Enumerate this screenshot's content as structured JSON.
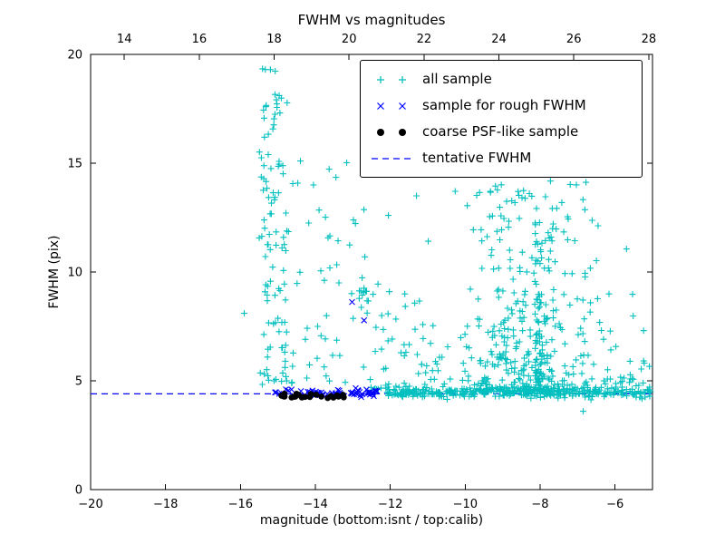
{
  "chart_data": {
    "type": "scatter",
    "title": "FWHM vs magnitudes",
    "xlabel": "magnitude (bottom:isnt / top:calib)",
    "ylabel": "FWHM (pix)",
    "x_range": [
      -20,
      -5
    ],
    "y_range": [
      0,
      20
    ],
    "x_top_range": [
      13.1,
      28.1
    ],
    "x_ticks": [
      -20,
      -18,
      -16,
      -14,
      -12,
      -10,
      -8,
      -6
    ],
    "x_top_ticks": [
      14,
      16,
      18,
      20,
      22,
      24,
      26,
      28
    ],
    "y_ticks": [
      0,
      5,
      10,
      15,
      20
    ],
    "grid": false,
    "legend_loc": "upper center",
    "seed": 42,
    "ref_line": {
      "label": "tentative FWHM",
      "y": 4.4,
      "color": "#0000ff",
      "style": "dashed"
    },
    "series": [
      {
        "name": "all sample",
        "marker": "plus",
        "color": "#00bfbf",
        "points": [
          [
            -15.9,
            8.1
          ],
          [
            -15.2,
            19.3
          ],
          [
            -15.32,
            17.6
          ],
          [
            -15.08,
            17.25
          ],
          [
            -14.4,
            15.1
          ],
          [
            -14.05,
            14.0
          ],
          [
            -13.45,
            14.35
          ],
          [
            -11.3,
            13.5
          ],
          [
            -12.05,
            12.6
          ],
          [
            -6.85,
            3.6
          ],
          [
            -5.6,
            5.9
          ],
          [
            -5.25,
            4.9
          ]
        ],
        "clusters": [
          {
            "n": 95,
            "x": {
              "dist": "u",
              "a": -15.5,
              "b": -14.75
            },
            "y": {
              "dist": "u",
              "a": 4.6,
              "b": 19.4
            }
          },
          {
            "n": 55,
            "x": {
              "dist": "u",
              "a": -14.95,
              "b": -12.6
            },
            "y": {
              "dist": "p",
              "a": 4.9,
              "b": 15.2,
              "p": 2.0
            }
          },
          {
            "n": 12,
            "x": {
              "dist": "u",
              "a": -13.0,
              "b": -12.45
            },
            "y": {
              "dist": "u",
              "a": 7.9,
              "b": 9.3
            }
          },
          {
            "n": 60,
            "x": {
              "dist": "u",
              "a": -12.6,
              "b": -10.6
            },
            "y": {
              "dist": "p",
              "a": 4.6,
              "b": 9.5,
              "p": 2.2
            }
          },
          {
            "n": 430,
            "x": {
              "dist": "n",
              "a": -8.4,
              "b": 1.0
            },
            "y": {
              "dist": "p",
              "a": 4.5,
              "b": 14.3,
              "p": 2.6
            }
          },
          {
            "n": 60,
            "x": {
              "dist": "u",
              "a": -8.15,
              "b": -7.95
            },
            "y": {
              "dist": "p",
              "a": 4.6,
              "b": 12.5,
              "p": 1.6
            }
          },
          {
            "n": 300,
            "x": {
              "dist": "u",
              "a": -12.1,
              "b": -5.05
            },
            "y": {
              "dist": "n",
              "a": 4.45,
              "b": 0.12
            }
          },
          {
            "n": 35,
            "x": {
              "dist": "u",
              "a": -6.6,
              "b": -5.0
            },
            "y": {
              "dist": "p",
              "a": 4.4,
              "b": 7.6,
              "p": 2.0
            }
          }
        ]
      },
      {
        "name": "sample for rough FWHM",
        "marker": "x",
        "color": "#0000ff",
        "points": [
          [
            -13.02,
            8.62
          ],
          [
            -12.7,
            7.78
          ]
        ],
        "clusters": [
          {
            "n": 58,
            "x": {
              "dist": "u",
              "a": -15.2,
              "b": -12.35
            },
            "y": {
              "dist": "n",
              "a": 4.45,
              "b": 0.09
            }
          }
        ]
      },
      {
        "name": "coarse PSF-like sample",
        "marker": "dot",
        "color": "#000000",
        "points": [],
        "clusters": [
          {
            "n": 22,
            "x": {
              "dist": "u",
              "a": -14.95,
              "b": -13.15
            },
            "y": {
              "dist": "n",
              "a": 4.3,
              "b": 0.05
            }
          }
        ]
      }
    ],
    "legend": [
      {
        "label": "all sample",
        "marker": "plus",
        "color": "#00bfbf"
      },
      {
        "label": "sample for rough FWHM",
        "marker": "x",
        "color": "#0000ff"
      },
      {
        "label": "coarse PSF-like sample",
        "marker": "dot",
        "color": "#000000"
      },
      {
        "label": "tentative FWHM",
        "marker": "dashed-line",
        "color": "#0000ff"
      }
    ]
  }
}
